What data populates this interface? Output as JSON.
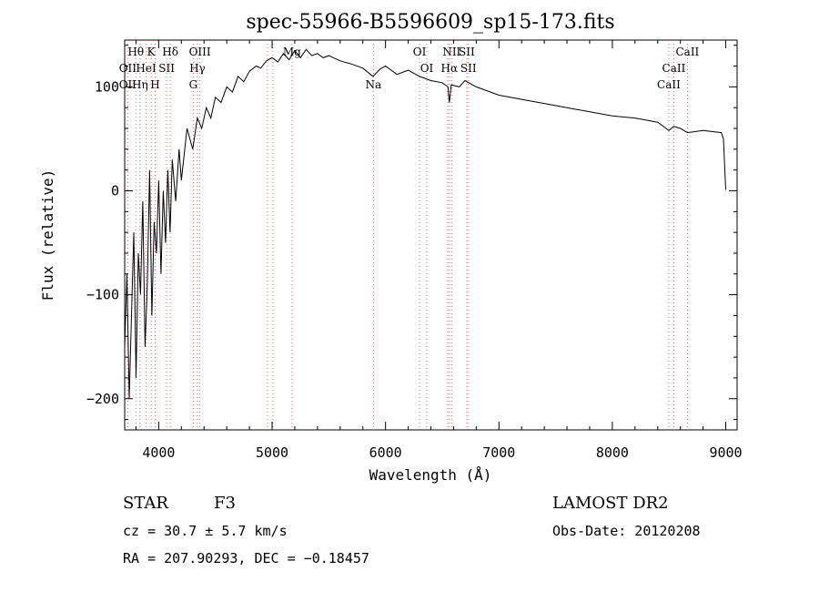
{
  "chart_data": {
    "type": "line",
    "title": "spec-55966-B5596609_sp15-173.fits",
    "xlabel": "Wavelength (Å)",
    "ylabel": "Flux (relative)",
    "xlim": [
      3700,
      9100
    ],
    "ylim": [
      -230,
      145
    ],
    "x_ticks": [
      4000,
      5000,
      6000,
      7000,
      8000,
      9000
    ],
    "y_ticks": [
      -200,
      -100,
      0,
      100
    ],
    "grid": false,
    "series": [
      {
        "color": "#000000",
        "x": [
          3700,
          3720,
          3740,
          3760,
          3780,
          3800,
          3820,
          3840,
          3860,
          3880,
          3900,
          3920,
          3940,
          3960,
          3980,
          4000,
          4020,
          4040,
          4060,
          4080,
          4100,
          4120,
          4150,
          4180,
          4200,
          4250,
          4300,
          4340,
          4380,
          4420,
          4460,
          4500,
          4550,
          4600,
          4650,
          4700,
          4750,
          4800,
          4860,
          4900,
          4950,
          5000,
          5050,
          5100,
          5150,
          5200,
          5250,
          5300,
          5350,
          5400,
          5450,
          5500,
          5600,
          5700,
          5800,
          5890,
          5950,
          6000,
          6100,
          6200,
          6300,
          6400,
          6500,
          6550,
          6563,
          6580,
          6650,
          6700,
          6800,
          7000,
          7200,
          7400,
          7600,
          7800,
          8000,
          8200,
          8400,
          8498,
          8542,
          8600,
          8662,
          8800,
          8960,
          8980,
          9000
        ],
        "y": [
          -150,
          -80,
          -200,
          -120,
          -40,
          -180,
          -60,
          -100,
          -10,
          -150,
          -90,
          20,
          -120,
          -30,
          -60,
          10,
          -80,
          0,
          -50,
          20,
          -40,
          30,
          -10,
          40,
          10,
          60,
          40,
          70,
          60,
          80,
          70,
          90,
          85,
          100,
          95,
          110,
          105,
          115,
          120,
          118,
          125,
          128,
          124,
          132,
          126,
          135,
          128,
          136,
          130,
          132,
          128,
          130,
          125,
          122,
          118,
          110,
          117,
          120,
          112,
          116,
          110,
          106,
          104,
          100,
          85,
          102,
          100,
          106,
          100,
          92,
          88,
          84,
          80,
          76,
          72,
          70,
          66,
          58,
          62,
          60,
          56,
          58,
          56,
          50,
          1
        ]
      }
    ],
    "line_labels": [
      {
        "text": "Hθ",
        "x": 3798
      },
      {
        "text": "K",
        "x": 3934
      },
      {
        "text": "Hδ",
        "x": 4102
      },
      {
        "text": "OII",
        "x": 3727
      },
      {
        "text": "HeI",
        "x": 3889
      },
      {
        "text": "SII",
        "x": 4070
      },
      {
        "text": "OII",
        "x": 3727
      },
      {
        "text": "Hη",
        "x": 3835
      },
      {
        "text": "H",
        "x": 3969
      },
      {
        "text": "OIII",
        "x": 4363
      },
      {
        "text": "Hγ",
        "x": 4341
      },
      {
        "text": "G",
        "x": 4305
      },
      {
        "text": "Mg",
        "x": 5175
      },
      {
        "text": "Na",
        "x": 5893
      },
      {
        "text": "OI",
        "x": 6300
      },
      {
        "text": "OI",
        "x": 6364
      },
      {
        "text": "NII",
        "x": 6583
      },
      {
        "text": "SII",
        "x": 6716
      },
      {
        "text": "Hα",
        "x": 6563
      },
      {
        "text": "SII",
        "x": 6731
      },
      {
        "text": "CaII",
        "x": 8662
      },
      {
        "text": "CaII",
        "x": 8542
      },
      {
        "text": "CaII",
        "x": 8498
      }
    ],
    "marker_lines_x": [
      3727,
      3798,
      3835,
      3889,
      3934,
      3969,
      4070,
      4102,
      4305,
      4341,
      4363,
      4959,
      5007,
      5175,
      5893,
      6300,
      6364,
      6548,
      6563,
      6583,
      6716,
      6731,
      8498,
      8542,
      8662
    ]
  },
  "info": {
    "class_label": "STAR",
    "subclass": "F3",
    "survey": "LAMOST DR2",
    "redshift": "cz = 30.7 ± 5.7 km/s",
    "obs_date": "Obs-Date: 20120208",
    "coords": "RA = 207.90293, DEC =  −0.18457"
  }
}
